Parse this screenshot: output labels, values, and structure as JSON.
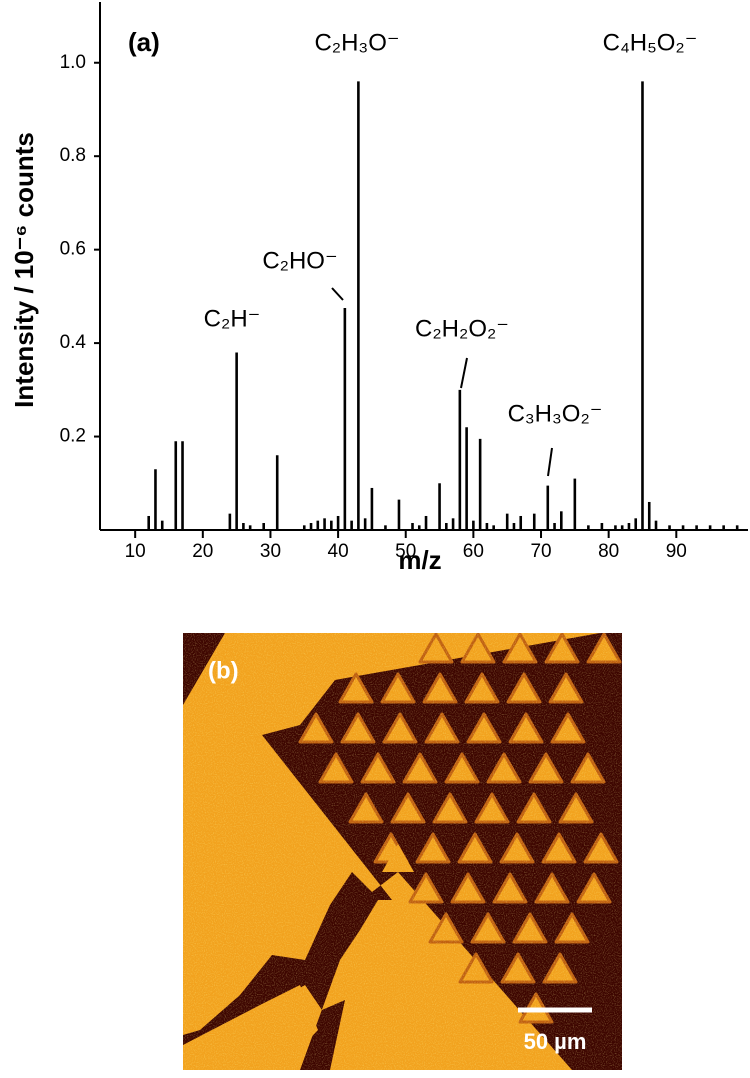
{
  "chart_data": {
    "type": "stem",
    "panel_label": "(a)",
    "x_label": "m/z",
    "y_label": "Intensity / 10⁻⁶ counts",
    "x": [
      12,
      13,
      14,
      16,
      17,
      24,
      25,
      26,
      27,
      29,
      31,
      35,
      36,
      37,
      38,
      39,
      40,
      41,
      42,
      43,
      44,
      45,
      47,
      49,
      51,
      52,
      53,
      55,
      56,
      57,
      58,
      59,
      60,
      61,
      62,
      63,
      65,
      66,
      67,
      69,
      71,
      72,
      73,
      75,
      77,
      79,
      81,
      82,
      83,
      84,
      85,
      86,
      87,
      89,
      91,
      93,
      95,
      97,
      99
    ],
    "values": [
      0.03,
      0.13,
      0.02,
      0.19,
      0.19,
      0.035,
      0.38,
      0.015,
      0.01,
      0.015,
      0.16,
      0.01,
      0.015,
      0.02,
      0.025,
      0.02,
      0.03,
      0.475,
      0.02,
      0.96,
      0.025,
      0.09,
      0.01,
      0.065,
      0.015,
      0.01,
      0.03,
      0.1,
      0.015,
      0.025,
      0.3,
      0.22,
      0.02,
      0.195,
      0.015,
      0.01,
      0.035,
      0.015,
      0.03,
      0.035,
      0.095,
      0.015,
      0.04,
      0.11,
      0.01,
      0.015,
      0.01,
      0.01,
      0.015,
      0.025,
      0.96,
      0.06,
      0.02,
      0.01,
      0.01,
      0.01,
      0.01,
      0.01,
      0.01
    ],
    "color": "#000000",
    "xlim": [
      4.8,
      100.6
    ],
    "ylim": [
      0,
      1.13
    ],
    "xticks": [
      10,
      20,
      30,
      40,
      50,
      60,
      70,
      80,
      90
    ],
    "yticks": [
      0.2,
      0.4,
      0.6,
      {
        "value": 0.8,
        "label": "0.8"
      },
      {
        "value": 1,
        "label": "1.0"
      }
    ],
    "annotations": [
      {
        "text": "C₂H⁻"
      },
      {
        "text": "C₂HO⁻"
      },
      {
        "text": "C₂H₃O⁻"
      },
      {
        "text": "C₂H₂O₂⁻"
      },
      {
        "text": "C₃H₃O₂⁻"
      },
      {
        "text": "C₄H₅O₂⁻"
      }
    ]
  },
  "image": {
    "panel_label": "(b)",
    "scale_bar": "50 µm"
  }
}
